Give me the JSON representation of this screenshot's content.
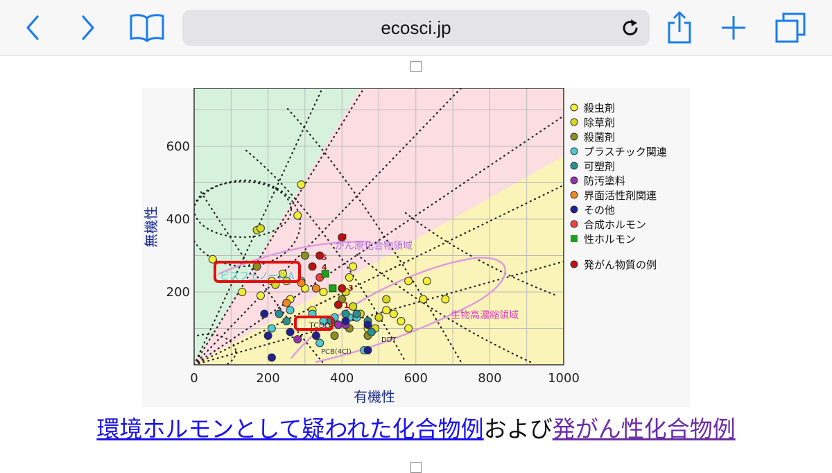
{
  "browser": {
    "url": "ecosci.jp",
    "colors": {
      "accent": "#1a7cf0",
      "address_bar": "#e4e4e7"
    }
  },
  "chart_data": {
    "type": "scatter",
    "xlabel": "有機性",
    "ylabel": "無機性",
    "xlim": [
      0,
      1000
    ],
    "ylim": [
      0,
      760
    ],
    "xticks": [
      "0",
      "200",
      "400",
      "600",
      "800",
      "1000"
    ],
    "yticks": [
      "200",
      "400",
      "600"
    ],
    "grid": true,
    "legend_position": "right",
    "region_labels": [
      "がん原化合物領域",
      "生物高濃縮領域"
    ],
    "annotations": [
      "ビスフェノールA",
      "TCDD",
      "DDT",
      "PCB(4Cl)",
      "1",
      "2",
      "3",
      "4",
      "5"
    ],
    "series": [
      {
        "name": "殺虫剤",
        "color": "#f2ee35",
        "points": [
          [
            50,
            290
          ],
          [
            130,
            200
          ],
          [
            180,
            190
          ],
          [
            210,
            230
          ],
          [
            240,
            250
          ],
          [
            260,
            180
          ],
          [
            280,
            410
          ],
          [
            290,
            495
          ],
          [
            350,
            200
          ],
          [
            420,
            240
          ],
          [
            430,
            270
          ],
          [
            470,
            100
          ],
          [
            500,
            130
          ],
          [
            520,
            150
          ],
          [
            540,
            140
          ],
          [
            560,
            120
          ],
          [
            580,
            230
          ],
          [
            630,
            230
          ],
          [
            580,
            100
          ],
          [
            620,
            180
          ],
          [
            680,
            180
          ],
          [
            300,
            210
          ],
          [
            320,
            150
          ]
        ]
      },
      {
        "name": "除草剤",
        "color": "#d8d820",
        "points": [
          [
            170,
            370
          ],
          [
            180,
            375
          ],
          [
            220,
            220
          ],
          [
            250,
            230
          ],
          [
            410,
            200
          ],
          [
            430,
            160
          ],
          [
            450,
            140
          ],
          [
            490,
            100
          ],
          [
            500,
            130
          ],
          [
            520,
            180
          ]
        ]
      },
      {
        "name": "殺菌剤",
        "color": "#8f8f20",
        "points": [
          [
            170,
            270
          ],
          [
            300,
            300
          ],
          [
            400,
            180
          ],
          [
            380,
            80
          ],
          [
            420,
            100
          ],
          [
            470,
            80
          ]
        ]
      },
      {
        "name": "プラスチック関連",
        "color": "#4fc8d0",
        "points": [
          [
            210,
            100
          ],
          [
            260,
            150
          ],
          [
            290,
            230
          ],
          [
            320,
            140
          ],
          [
            350,
            120
          ],
          [
            380,
            130
          ],
          [
            420,
            130
          ],
          [
            440,
            130
          ],
          [
            460,
            40
          ],
          [
            340,
            60
          ]
        ]
      },
      {
        "name": "可塑剤",
        "color": "#2a8f90",
        "points": [
          [
            230,
            140
          ],
          [
            250,
            120
          ],
          [
            370,
            120
          ],
          [
            390,
            110
          ],
          [
            410,
            140
          ],
          [
            440,
            140
          ],
          [
            470,
            120
          ],
          [
            480,
            90
          ]
        ]
      },
      {
        "name": "防汚塗料",
        "color": "#9b30b0",
        "points": [
          [
            280,
            70
          ],
          [
            390,
            110
          ],
          [
            410,
            110
          ]
        ]
      },
      {
        "name": "界面活性剤関連",
        "color": "#f08820",
        "points": [
          [
            290,
            225
          ],
          [
            330,
            210
          ],
          [
            250,
            170
          ]
        ]
      },
      {
        "name": "その他",
        "color": "#202090",
        "points": [
          [
            190,
            140
          ],
          [
            200,
            80
          ],
          [
            210,
            20
          ],
          [
            260,
            90
          ],
          [
            330,
            80
          ],
          [
            410,
            120
          ],
          [
            470,
            40
          ],
          [
            470,
            110
          ]
        ]
      },
      {
        "name": "合成ホルモン",
        "color": "#f04040",
        "points": [
          [
            340,
            240
          ]
        ]
      },
      {
        "name": "性ホルモン",
        "color": "#20a020",
        "points": [
          [
            355,
            250
          ],
          [
            375,
            210
          ]
        ]
      },
      {
        "name": "発がん物質の例",
        "color": "#c01010",
        "points": [
          [
            390,
            165
          ],
          [
            400,
            350
          ],
          [
            400,
            210
          ],
          [
            340,
            300
          ],
          [
            320,
            270
          ]
        ]
      }
    ]
  },
  "chart_text": {
    "callout_bpa": "ビスフェノールA",
    "callout_tcdd": "TCDD",
    "label_ddt": "DDT",
    "label_pcb": "PCB(4Cl)",
    "region_carcinogen": "がん原化合物領域",
    "region_bioconc": "生物高濃縮領域",
    "num_1": "1",
    "num_2": "2",
    "num_3": "3",
    "num_4": "4",
    "num_5": "5",
    "highlight_color": "#e01010"
  },
  "caption": {
    "link1": "環境ホルモンとして疑われた化合物例",
    "middle": "および",
    "link2": "発がん性化合物例"
  }
}
